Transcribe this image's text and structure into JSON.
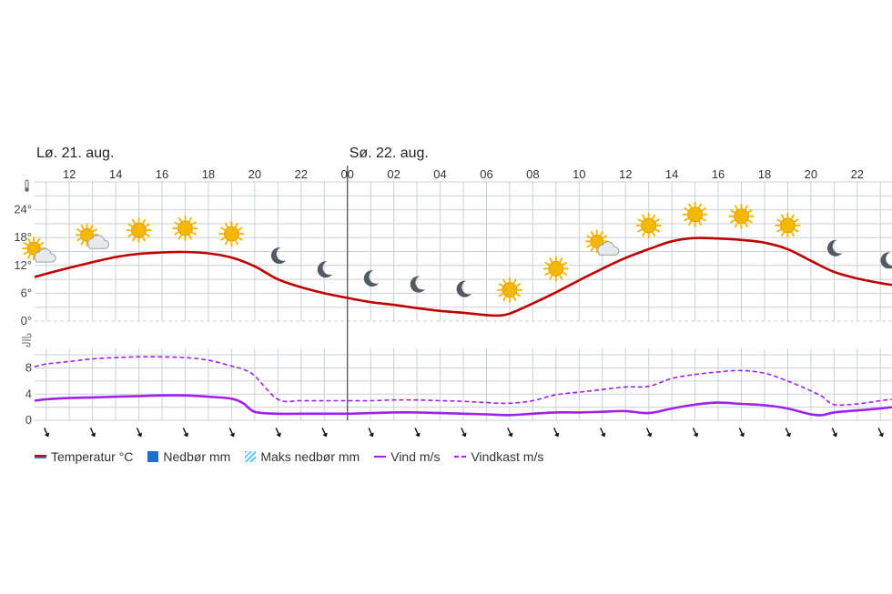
{
  "chart_data": {
    "type": "line",
    "days": [
      {
        "label": "Lø. 21. aug.",
        "start_hour": 10
      },
      {
        "label": "Sø. 22. aug.",
        "start_hour": 24
      }
    ],
    "hour_ticks": [
      {
        "hour": 12,
        "label": "12"
      },
      {
        "hour": 14,
        "label": "14"
      },
      {
        "hour": 16,
        "label": "16"
      },
      {
        "hour": 18,
        "label": "18"
      },
      {
        "hour": 20,
        "label": "20"
      },
      {
        "hour": 22,
        "label": "22"
      },
      {
        "hour": 24,
        "label": "00"
      },
      {
        "hour": 26,
        "label": "02"
      },
      {
        "hour": 28,
        "label": "04"
      },
      {
        "hour": 30,
        "label": "06"
      },
      {
        "hour": 32,
        "label": "08"
      },
      {
        "hour": 34,
        "label": "10"
      },
      {
        "hour": 36,
        "label": "12"
      },
      {
        "hour": 38,
        "label": "14"
      },
      {
        "hour": 40,
        "label": "16"
      },
      {
        "hour": 42,
        "label": "18"
      },
      {
        "hour": 44,
        "label": "20"
      },
      {
        "hour": 46,
        "label": "22"
      }
    ],
    "x_range_hours": [
      10.5,
      47.5
    ],
    "temperature": {
      "axis_ticks": [
        {
          "value": 0,
          "label": "0°"
        },
        {
          "value": 6,
          "label": "6°"
        },
        {
          "value": 12,
          "label": "12°"
        },
        {
          "value": 18,
          "label": "18°"
        },
        {
          "value": 24,
          "label": "24°"
        }
      ],
      "ylim": [
        0,
        30
      ],
      "color": "#c00000",
      "hours": [
        10.5,
        11,
        12,
        13,
        14,
        15,
        16,
        17,
        18,
        19,
        20,
        21,
        22,
        23,
        24,
        25,
        26,
        27,
        28,
        29,
        30,
        30.5,
        31,
        32,
        33,
        34,
        35,
        36,
        37,
        38,
        39,
        40,
        41,
        42,
        43,
        44,
        45,
        46,
        47,
        47.5
      ],
      "values": [
        9.5,
        10.2,
        11.5,
        12.7,
        13.8,
        14.5,
        14.8,
        14.9,
        14.6,
        13.7,
        11.8,
        9.0,
        7.3,
        6.0,
        5.0,
        4.1,
        3.5,
        2.8,
        2.2,
        1.8,
        1.3,
        1.2,
        1.6,
        3.8,
        6.2,
        8.8,
        11.3,
        13.6,
        15.5,
        17.2,
        17.9,
        17.8,
        17.5,
        16.9,
        15.5,
        13.0,
        10.6,
        9.2,
        8.2,
        7.8
      ]
    },
    "wind": {
      "axis_ticks": [
        {
          "value": 0,
          "label": "0"
        },
        {
          "value": 4,
          "label": "4"
        },
        {
          "value": 8,
          "label": "8"
        }
      ],
      "ylim": [
        0,
        11
      ],
      "color": "#a020f0",
      "hours": [
        10.5,
        11,
        12,
        13,
        14,
        15,
        16,
        17,
        18,
        19,
        19.5,
        20,
        21,
        22,
        23,
        24,
        25,
        26,
        27,
        28,
        29,
        30,
        31,
        32,
        33,
        34,
        35,
        36,
        37,
        38,
        39,
        40,
        41,
        42,
        43,
        44,
        44.5,
        45,
        46,
        47,
        47.5
      ],
      "speed": [
        3.0,
        3.2,
        3.4,
        3.5,
        3.6,
        3.7,
        3.8,
        3.8,
        3.6,
        3.3,
        2.6,
        1.3,
        1.0,
        1.0,
        1.0,
        1.0,
        1.1,
        1.2,
        1.2,
        1.1,
        1.0,
        0.9,
        0.8,
        1.0,
        1.2,
        1.2,
        1.3,
        1.4,
        1.1,
        1.8,
        2.4,
        2.7,
        2.5,
        2.3,
        1.8,
        0.9,
        0.8,
        1.2,
        1.5,
        1.8,
        2.0
      ],
      "gust": [
        8.2,
        8.6,
        9.0,
        9.4,
        9.6,
        9.7,
        9.7,
        9.6,
        9.2,
        8.3,
        7.8,
        6.8,
        3.2,
        3.0,
        3.0,
        3.0,
        3.0,
        3.1,
        3.1,
        3.0,
        2.9,
        2.7,
        2.6,
        3.0,
        3.9,
        4.3,
        4.7,
        5.1,
        5.2,
        6.4,
        7.0,
        7.4,
        7.6,
        7.2,
        6.0,
        4.5,
        3.6,
        2.4,
        2.5,
        3.0,
        3.2
      ]
    },
    "weather_symbols": [
      {
        "hour": 10.7,
        "type": "partly-cloudy-day"
      },
      {
        "hour": 13,
        "type": "partly-cloudy-day"
      },
      {
        "hour": 15,
        "type": "clear-day"
      },
      {
        "hour": 17,
        "type": "clear-day"
      },
      {
        "hour": 19,
        "type": "clear-day"
      },
      {
        "hour": 21,
        "type": "clear-night"
      },
      {
        "hour": 23,
        "type": "clear-night"
      },
      {
        "hour": 25,
        "type": "clear-night"
      },
      {
        "hour": 27,
        "type": "clear-night"
      },
      {
        "hour": 29,
        "type": "clear-night"
      },
      {
        "hour": 31,
        "type": "clear-day"
      },
      {
        "hour": 33,
        "type": "clear-day"
      },
      {
        "hour": 35,
        "type": "partly-cloudy-day"
      },
      {
        "hour": 37,
        "type": "clear-day"
      },
      {
        "hour": 39,
        "type": "clear-day"
      },
      {
        "hour": 41,
        "type": "clear-day"
      },
      {
        "hour": 43,
        "type": "clear-day"
      },
      {
        "hour": 45,
        "type": "clear-night"
      },
      {
        "hour": 47.3,
        "type": "clear-night"
      }
    ],
    "wind_direction_hours": [
      11,
      13,
      15,
      17,
      19,
      21,
      23,
      25,
      27,
      29,
      31,
      33,
      35,
      37,
      39,
      41,
      43,
      45,
      47
    ],
    "legend": [
      {
        "key": "temp",
        "label": "Temperatur °C"
      },
      {
        "key": "precip",
        "label": "Nedbør mm"
      },
      {
        "key": "maxprecip",
        "label": "Maks nedbør mm"
      },
      {
        "key": "wind",
        "label": "Vind m/s"
      },
      {
        "key": "gust",
        "label": "Vindkast m/s"
      }
    ]
  },
  "colors": {
    "temperature": "#c00000",
    "wind": "#a020f0",
    "precipitation": "#1f6fd1",
    "max_precipitation": "#5ec8f0",
    "grid": "#c9d1da",
    "sun": "#f5b800"
  },
  "icons": {
    "temperature_axis": "thermometer-icon",
    "wind_axis": "wind-icon"
  }
}
